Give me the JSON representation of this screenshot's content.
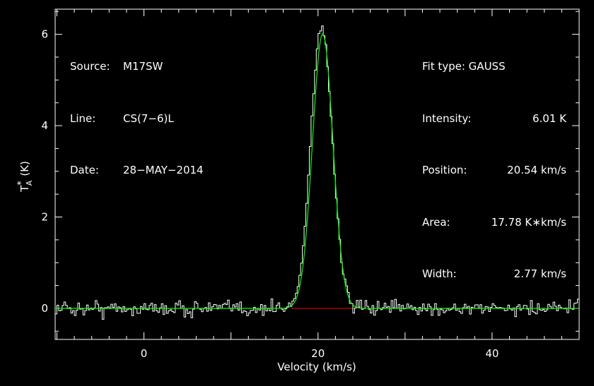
{
  "info_left": [
    {
      "label": "Source:",
      "value": "M17SW"
    },
    {
      "label": "Line:",
      "value": "CS(7−6)L"
    },
    {
      "label": "Date:",
      "value": "28−MAY−2014"
    }
  ],
  "info_right": {
    "fit_type": "Fit type: GAUSS",
    "rows": [
      {
        "label": "Intensity:",
        "value": "6.01 K"
      },
      {
        "label": "Position:",
        "value": "20.54 km/s"
      },
      {
        "label": "Area:",
        "value": "17.78 K∗km/s"
      },
      {
        "label": "Width:",
        "value": "2.77 km/s"
      }
    ]
  },
  "chart_data": {
    "type": "line",
    "xlabel": "Velocity (km/s)",
    "ylabel_main": "T",
    "ylabel_sub": "A",
    "ylabel_sup": "*",
    "ylabel_unit": "(K)",
    "xlim": [
      -10.2,
      50
    ],
    "ylim": [
      -0.68,
      6.55
    ],
    "x_ticks": [
      0,
      20,
      40
    ],
    "y_ticks": [
      0,
      2,
      4,
      6
    ],
    "colors": {
      "frame": "#ffffff",
      "spectrum": "#ffffff",
      "fit": "#00ff00",
      "baseline": "#ff0000"
    },
    "fit": {
      "peak_K": 6.01,
      "center_kms": 20.54,
      "fwhm_kms": 2.77
    },
    "baseline_segment": [
      16.9,
      24.2
    ],
    "spectrum": {
      "x_start": -10.2,
      "channel_width": 0.2,
      "noise_rms": 0.1,
      "peak_channels": [
        [
          16.9,
          0.05
        ],
        [
          17.1,
          0.15
        ],
        [
          17.3,
          0.25
        ],
        [
          17.5,
          0.35
        ],
        [
          17.7,
          0.55
        ],
        [
          17.9,
          0.75
        ],
        [
          18.1,
          1.0
        ],
        [
          18.3,
          1.35
        ],
        [
          18.5,
          1.8
        ],
        [
          18.7,
          2.35
        ],
        [
          18.9,
          2.95
        ],
        [
          19.1,
          3.55
        ],
        [
          19.3,
          4.15
        ],
        [
          19.5,
          4.75
        ],
        [
          19.7,
          5.25
        ],
        [
          19.9,
          5.7
        ],
        [
          20.1,
          5.95
        ],
        [
          20.3,
          6.1
        ],
        [
          20.5,
          6.2
        ],
        [
          20.7,
          6.0
        ],
        [
          20.9,
          5.75
        ],
        [
          21.1,
          5.3
        ],
        [
          21.3,
          4.75
        ],
        [
          21.5,
          4.2
        ],
        [
          21.7,
          3.6
        ],
        [
          21.9,
          3.0
        ],
        [
          22.1,
          2.45
        ],
        [
          22.3,
          1.95
        ],
        [
          22.5,
          1.5
        ],
        [
          22.7,
          1.1
        ],
        [
          22.9,
          0.8
        ],
        [
          23.1,
          0.6
        ],
        [
          23.3,
          0.4
        ],
        [
          23.5,
          0.25
        ],
        [
          23.7,
          0.15
        ]
      ]
    }
  }
}
